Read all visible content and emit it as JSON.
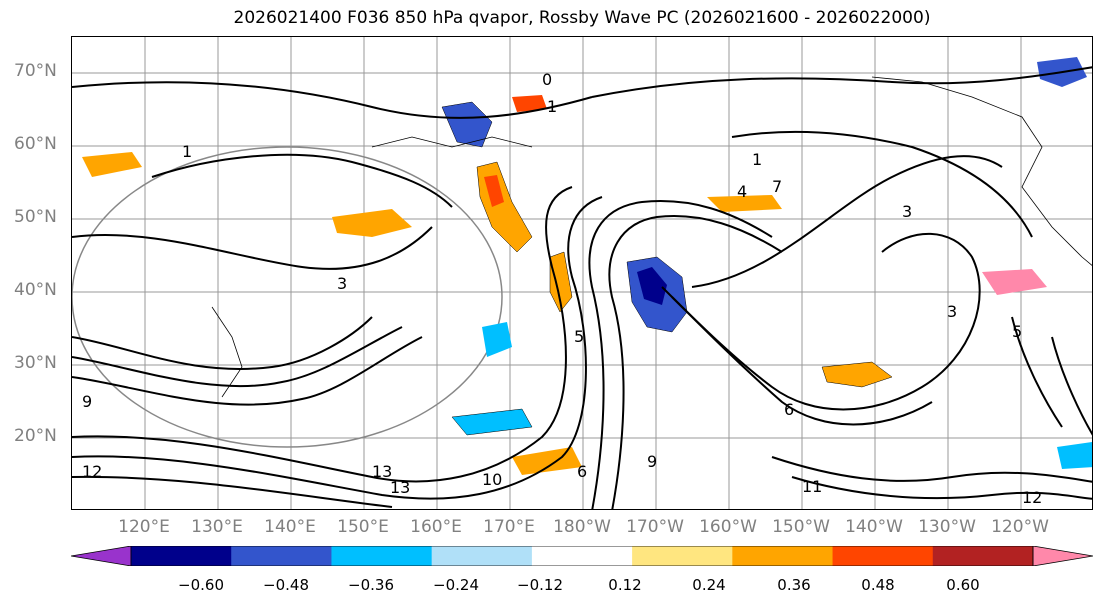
{
  "title": "2026021400 F036 850 hPa qvapor, Rossby Wave PC (2026021600 - 2026022000)",
  "lat_labels": [
    "70°N",
    "60°N",
    "50°N",
    "40°N",
    "30°N",
    "20°N"
  ],
  "lon_labels": [
    "120°E",
    "130°E",
    "140°E",
    "150°E",
    "160°E",
    "170°E",
    "180°W",
    "170°W",
    "160°W",
    "150°W",
    "140°W",
    "130°W",
    "120°W"
  ],
  "colorbar": {
    "ticks": [
      "−0.60",
      "−0.48",
      "−0.36",
      "−0.24",
      "−0.12",
      "0.12",
      "0.24",
      "0.36",
      "0.48",
      "0.60"
    ],
    "colors": [
      "#9933cc",
      "#00008b",
      "#3355cc",
      "#00bfff",
      "#b0e0f8",
      "#ffffff",
      "#ffe680",
      "#ffa500",
      "#ff4500",
      "#b22222",
      "#ff88aa"
    ]
  },
  "contour_labels": [
    "0",
    "1",
    "1",
    "3",
    "3",
    "5",
    "6",
    "6",
    "9",
    "10",
    "11",
    "12",
    "13",
    "13",
    "1",
    "9",
    "12",
    "7",
    "4",
    "3",
    "5"
  ]
}
